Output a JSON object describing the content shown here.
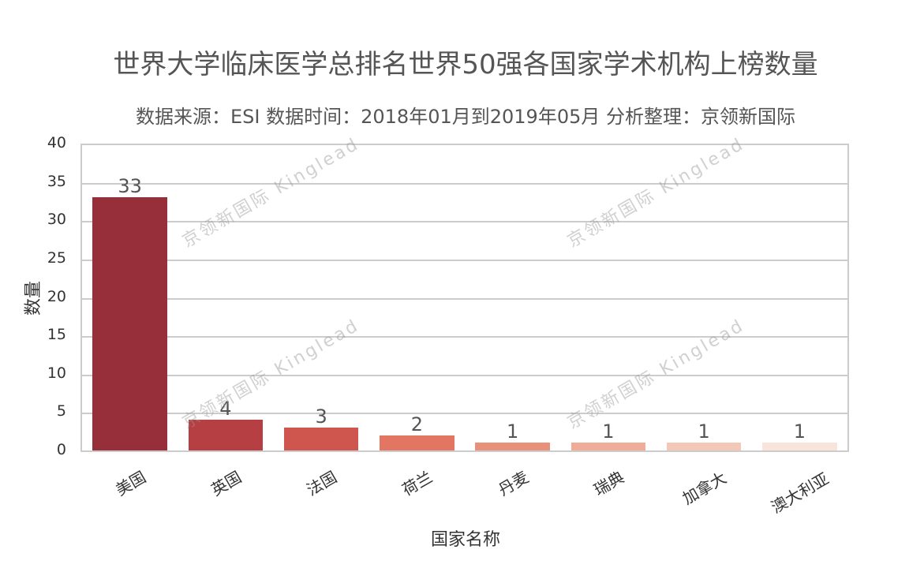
{
  "chart_data": {
    "type": "bar",
    "title": "世界大学临床医学总排名世界50强各国家学术机构上榜数量",
    "subtitle": "数据来源：ESI 数据时间：2018年01月到2019年05月 分析整理：京领新国际",
    "xlabel": "国家名称",
    "ylabel": "数量",
    "categories": [
      "美国",
      "英国",
      "法国",
      "荷兰",
      "丹麦",
      "瑞典",
      "加拿大",
      "澳大利亚"
    ],
    "values": [
      33,
      4,
      3,
      2,
      1,
      1,
      1,
      1
    ],
    "colors": [
      "#962f39",
      "#b53f43",
      "#cf564f",
      "#e27663",
      "#e9907b",
      "#efad98",
      "#f3c8b8",
      "#f8e4da"
    ],
    "ylim": [
      0,
      40
    ],
    "yticks": [
      "0",
      "5",
      "10",
      "15",
      "20",
      "25",
      "30",
      "35",
      "40"
    ],
    "grid": true,
    "legend": null,
    "data_labels": [
      "33",
      "4",
      "3",
      "2",
      "1",
      "1",
      "1",
      "1"
    ]
  },
  "watermark": "京领新国际 Kinglead"
}
